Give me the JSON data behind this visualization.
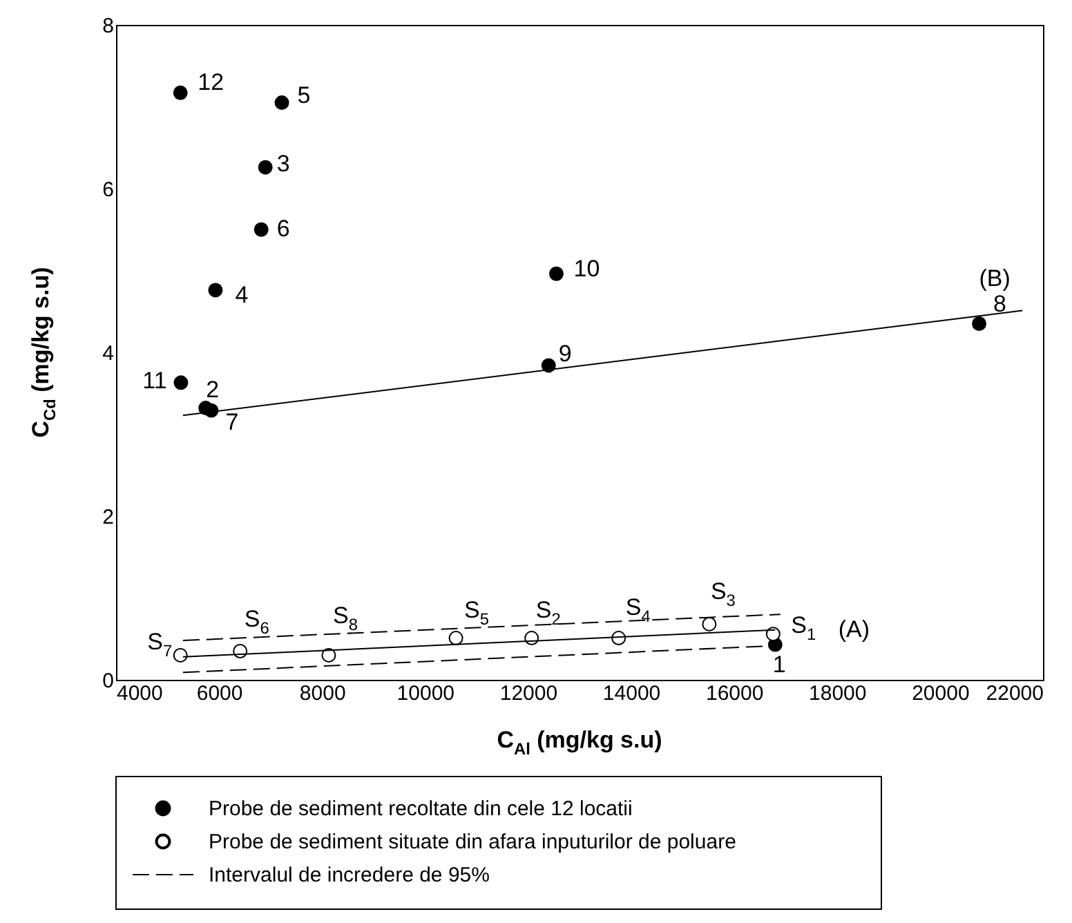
{
  "chart_data": {
    "type": "scatter",
    "xlabel": "C$_{Al}$ (mg/kg s.u)",
    "ylabel": "C$_{Cd}$ (mg/kg s.u)",
    "xlim": [
      4000,
      22000
    ],
    "xticks": [
      4000,
      6000,
      8000,
      10000,
      12000,
      14000,
      16000,
      18000,
      20000,
      22000
    ],
    "ylim": [
      0,
      8
    ],
    "yticks": [
      0,
      2,
      4,
      6,
      8
    ],
    "grid": false,
    "legend": "bottom",
    "series": [
      {
        "name": "Probe de sediment recoltate din cele 12 locatii",
        "marker": "circle",
        "color": "#000000",
        "x": [
          16800,
          5740,
          6900,
          5930,
          7220,
          6820,
          5850,
          20760,
          12400,
          12550,
          5260,
          5250
        ],
        "values": [
          0.43,
          3.32,
          6.26,
          4.76,
          7.05,
          5.5,
          3.29,
          4.35,
          3.84,
          4.96,
          3.63,
          7.17
        ]
      },
      {
        "name": "Probe de sediment situate din afara inputurilor de poluare",
        "marker": "circle",
        "color": "#ffffff",
        "x": [
          16760,
          12070,
          15520,
          13760,
          10600,
          6410,
          5250,
          8130
        ],
        "values": [
          0.56,
          0.51,
          0.68,
          0.51,
          0.51,
          0.35,
          0.3,
          0.3
        ]
      },
      {
        "type": "line",
        "marker": "none",
        "line_style": "solid",
        "color": "#000000",
        "x": [
          5300,
          16800
        ],
        "values": [
          0.28,
          0.61
        ]
      },
      {
        "name": "Intervalul de incredere de 95%",
        "type": "line",
        "marker": "none",
        "line_style": "dashed",
        "color": "#000000",
        "x": [
          5300,
          16900
        ],
        "values": [
          0.48,
          0.8
        ]
      },
      {
        "type": "line",
        "marker": "none",
        "line_style": "dashed",
        "color": "#000000",
        "x": [
          5300,
          16900
        ],
        "values": [
          0.09,
          0.42
        ]
      },
      {
        "type": "line",
        "marker": "none",
        "line_style": "solid",
        "color": "#000000",
        "x": [
          5300,
          21600
        ],
        "values": [
          3.23,
          4.51
        ]
      }
    ],
    "annotations": [
      {
        "text": "1",
        "x": 16800,
        "y": 0.43
      },
      {
        "text": "2",
        "x": 5740,
        "y": 3.32
      },
      {
        "text": "3",
        "x": 6900,
        "y": 6.26
      },
      {
        "text": "4",
        "x": 5930,
        "y": 4.76
      },
      {
        "text": "5",
        "x": 7220,
        "y": 7.05
      },
      {
        "text": "6",
        "x": 6820,
        "y": 5.5
      },
      {
        "text": "7",
        "x": 5850,
        "y": 3.29
      },
      {
        "text": "8",
        "x": 20760,
        "y": 4.35
      },
      {
        "text": "9",
        "x": 12400,
        "y": 3.84
      },
      {
        "text": "10",
        "x": 12550,
        "y": 4.96
      },
      {
        "text": "11",
        "x": 5260,
        "y": 3.63
      },
      {
        "text": "12",
        "x": 5250,
        "y": 7.17
      },
      {
        "text": "(B)",
        "x": 21600,
        "y": 4.51
      },
      {
        "text": "(A)",
        "x": 16800,
        "y": 0.61
      },
      {
        "text": "S$_{1}$",
        "x": 16760,
        "y": 0.56
      },
      {
        "text": "S$_{2}$",
        "x": 12070,
        "y": 0.51
      },
      {
        "text": "S$_{3}$",
        "x": 15520,
        "y": 0.68
      },
      {
        "text": "S$_{4}$",
        "x": 13760,
        "y": 0.51
      },
      {
        "text": "S$_{5}$",
        "x": 10600,
        "y": 0.51
      },
      {
        "text": "S$_{6}$",
        "x": 6410,
        "y": 0.35
      },
      {
        "text": "S$_{7}$",
        "x": 5250,
        "y": 0.3
      },
      {
        "text": "S$_{8}$",
        "x": 8130,
        "y": 0.3
      }
    ]
  }
}
